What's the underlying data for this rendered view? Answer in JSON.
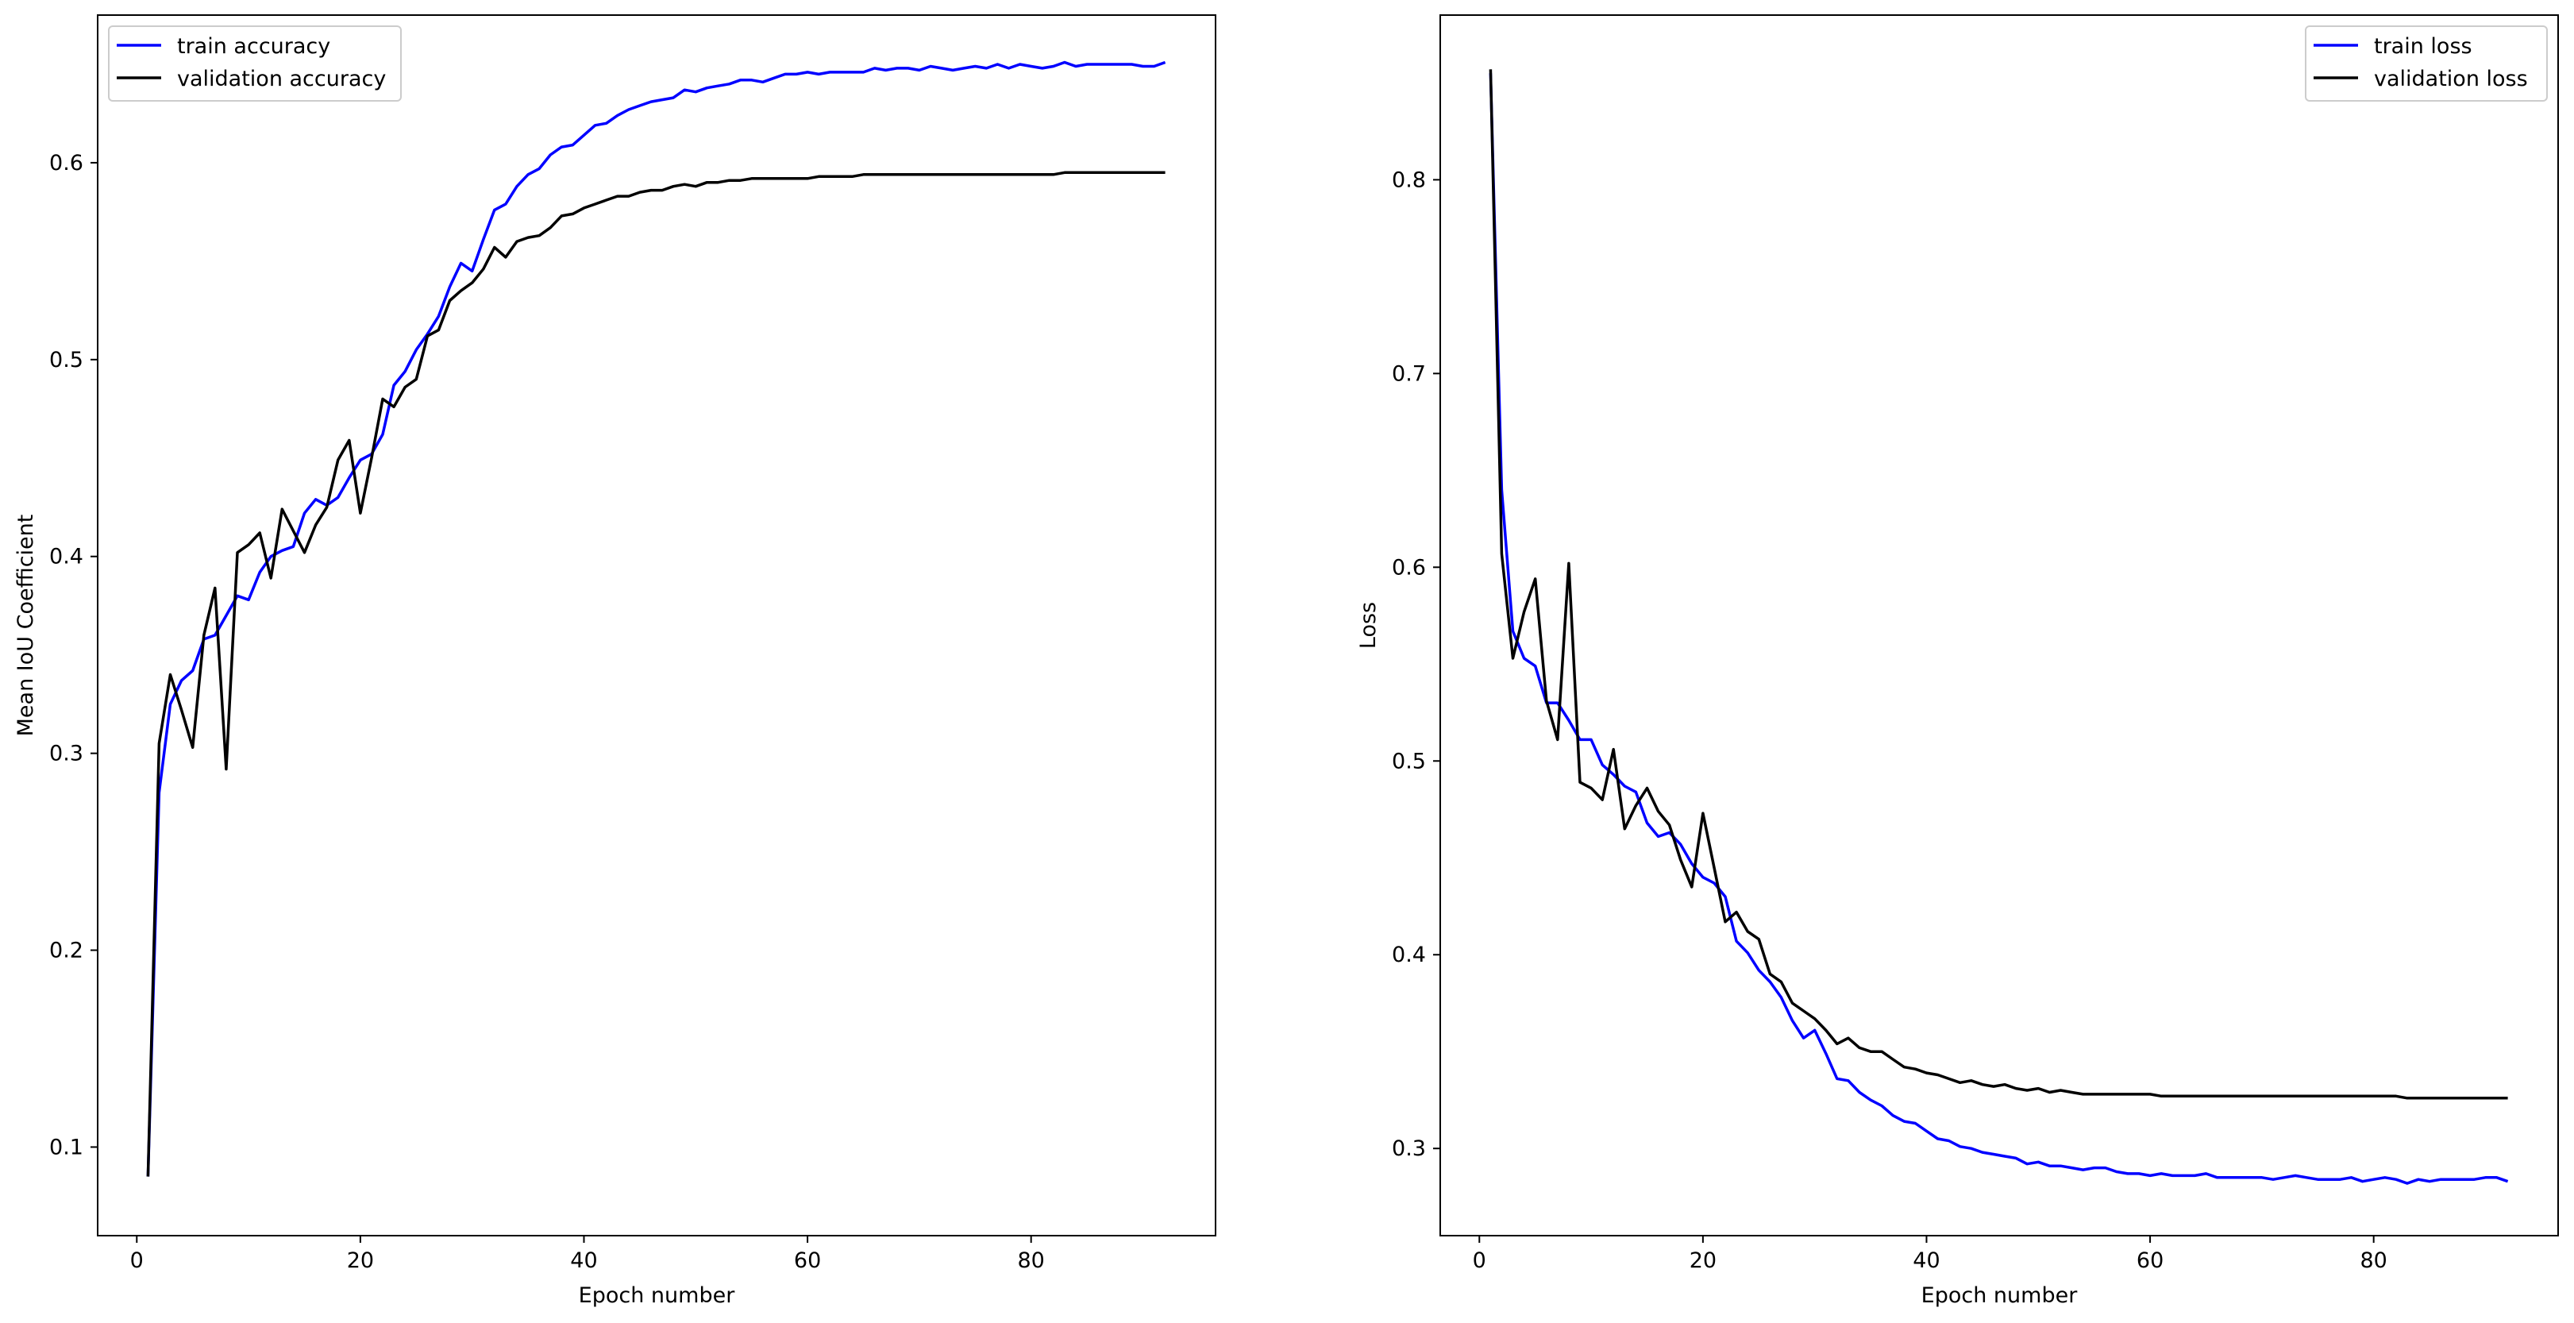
{
  "chart_data": [
    {
      "type": "line",
      "title": "",
      "xlabel": "Epoch number",
      "ylabel": "Mean IoU Coefficient",
      "xlim": [
        -3.5,
        96.5
      ],
      "ylim": [
        0.055,
        0.675
      ],
      "xticks": [
        0,
        20,
        40,
        60,
        80
      ],
      "yticks": [
        0.1,
        0.2,
        0.3,
        0.4,
        0.5,
        0.6
      ],
      "grid": false,
      "legend_position": "upper-left",
      "series": [
        {
          "name": "train accuracy",
          "color": "#0000ff",
          "x": [
            1,
            2,
            3,
            4,
            5,
            6,
            7,
            8,
            9,
            10,
            11,
            12,
            13,
            14,
            15,
            16,
            17,
            18,
            19,
            20,
            21,
            22,
            23,
            24,
            25,
            26,
            27,
            28,
            29,
            30,
            31,
            32,
            33,
            34,
            35,
            36,
            37,
            38,
            39,
            40,
            41,
            42,
            43,
            44,
            45,
            46,
            47,
            48,
            49,
            50,
            51,
            52,
            53,
            54,
            55,
            56,
            57,
            58,
            59,
            60,
            61,
            62,
            63,
            64,
            65,
            66,
            67,
            68,
            69,
            70,
            71,
            72,
            73,
            74,
            75,
            76,
            77,
            78,
            79,
            80,
            81,
            82,
            83,
            84,
            85,
            86,
            87,
            88,
            89,
            90,
            91,
            92
          ],
          "y": [
            0.085,
            0.28,
            0.325,
            0.337,
            0.342,
            0.358,
            0.36,
            0.37,
            0.38,
            0.378,
            0.392,
            0.4,
            0.403,
            0.405,
            0.422,
            0.429,
            0.426,
            0.43,
            0.44,
            0.449,
            0.452,
            0.462,
            0.487,
            0.494,
            0.505,
            0.513,
            0.522,
            0.537,
            0.549,
            0.545,
            0.561,
            0.576,
            0.579,
            0.588,
            0.594,
            0.597,
            0.604,
            0.608,
            0.609,
            0.614,
            0.619,
            0.62,
            0.624,
            0.627,
            0.629,
            0.631,
            0.632,
            0.633,
            0.637,
            0.636,
            0.638,
            0.639,
            0.64,
            0.642,
            0.642,
            0.641,
            0.643,
            0.645,
            0.645,
            0.646,
            0.645,
            0.646,
            0.646,
            0.646,
            0.646,
            0.648,
            0.647,
            0.648,
            0.648,
            0.647,
            0.649,
            0.648,
            0.647,
            0.648,
            0.649,
            0.648,
            0.65,
            0.648,
            0.65,
            0.649,
            0.648,
            0.649,
            0.651,
            0.649,
            0.65,
            0.65,
            0.65,
            0.65,
            0.65,
            0.649,
            0.649,
            0.651
          ]
        },
        {
          "name": "validation accuracy",
          "color": "#000000",
          "x": [
            1,
            2,
            3,
            4,
            5,
            6,
            7,
            8,
            9,
            10,
            11,
            12,
            13,
            14,
            15,
            16,
            17,
            18,
            19,
            20,
            21,
            22,
            23,
            24,
            25,
            26,
            27,
            28,
            29,
            30,
            31,
            32,
            33,
            34,
            35,
            36,
            37,
            38,
            39,
            40,
            41,
            42,
            43,
            44,
            45,
            46,
            47,
            48,
            49,
            50,
            51,
            52,
            53,
            54,
            55,
            56,
            57,
            58,
            59,
            60,
            61,
            62,
            63,
            64,
            65,
            66,
            67,
            68,
            69,
            70,
            71,
            72,
            73,
            74,
            75,
            76,
            77,
            78,
            79,
            80,
            81,
            82,
            83,
            84,
            85,
            86,
            87,
            88,
            89,
            90,
            91,
            92
          ],
          "y": [
            0.085,
            0.305,
            0.34,
            0.322,
            0.303,
            0.36,
            0.384,
            0.292,
            0.402,
            0.406,
            0.412,
            0.389,
            0.424,
            0.413,
            0.402,
            0.416,
            0.425,
            0.449,
            0.459,
            0.422,
            0.45,
            0.48,
            0.476,
            0.486,
            0.49,
            0.512,
            0.515,
            0.53,
            0.535,
            0.539,
            0.546,
            0.557,
            0.552,
            0.56,
            0.562,
            0.563,
            0.567,
            0.573,
            0.574,
            0.577,
            0.579,
            0.581,
            0.583,
            0.583,
            0.585,
            0.586,
            0.586,
            0.588,
            0.589,
            0.588,
            0.59,
            0.59,
            0.591,
            0.591,
            0.592,
            0.592,
            0.592,
            0.592,
            0.592,
            0.592,
            0.593,
            0.593,
            0.593,
            0.593,
            0.594,
            0.594,
            0.594,
            0.594,
            0.594,
            0.594,
            0.594,
            0.594,
            0.594,
            0.594,
            0.594,
            0.594,
            0.594,
            0.594,
            0.594,
            0.594,
            0.594,
            0.594,
            0.595,
            0.595,
            0.595,
            0.595,
            0.595,
            0.595,
            0.595,
            0.595,
            0.595,
            0.595
          ]
        }
      ]
    },
    {
      "type": "line",
      "title": "",
      "xlabel": "Epoch number",
      "ylabel": "Loss",
      "xlim": [
        -3.5,
        96.5
      ],
      "ylim": [
        0.255,
        0.885
      ],
      "xticks": [
        0,
        20,
        40,
        60,
        80
      ],
      "yticks": [
        0.3,
        0.4,
        0.5,
        0.6,
        0.7,
        0.8
      ],
      "grid": false,
      "legend_position": "upper-right",
      "series": [
        {
          "name": "train loss",
          "color": "#0000ff",
          "x": [
            1,
            2,
            3,
            4,
            5,
            6,
            7,
            8,
            9,
            10,
            11,
            12,
            13,
            14,
            15,
            16,
            17,
            18,
            19,
            20,
            21,
            22,
            23,
            24,
            25,
            26,
            27,
            28,
            29,
            30,
            31,
            32,
            33,
            34,
            35,
            36,
            37,
            38,
            39,
            40,
            41,
            42,
            43,
            44,
            45,
            46,
            47,
            48,
            49,
            50,
            51,
            52,
            53,
            54,
            55,
            56,
            57,
            58,
            59,
            60,
            61,
            62,
            63,
            64,
            65,
            66,
            67,
            68,
            69,
            70,
            71,
            72,
            73,
            74,
            75,
            76,
            77,
            78,
            79,
            80,
            81,
            82,
            83,
            84,
            85,
            86,
            87,
            88,
            89,
            90,
            91,
            92
          ],
          "y": [
            0.855,
            0.64,
            0.567,
            0.553,
            0.549,
            0.53,
            0.53,
            0.521,
            0.511,
            0.511,
            0.498,
            0.493,
            0.487,
            0.484,
            0.468,
            0.461,
            0.463,
            0.457,
            0.447,
            0.44,
            0.437,
            0.43,
            0.407,
            0.401,
            0.392,
            0.386,
            0.378,
            0.366,
            0.357,
            0.361,
            0.349,
            0.336,
            0.335,
            0.329,
            0.325,
            0.322,
            0.317,
            0.314,
            0.313,
            0.309,
            0.305,
            0.304,
            0.301,
            0.3,
            0.298,
            0.297,
            0.296,
            0.295,
            0.292,
            0.293,
            0.291,
            0.291,
            0.29,
            0.289,
            0.29,
            0.29,
            0.288,
            0.287,
            0.287,
            0.286,
            0.287,
            0.286,
            0.286,
            0.286,
            0.287,
            0.285,
            0.285,
            0.285,
            0.285,
            0.285,
            0.284,
            0.285,
            0.286,
            0.285,
            0.284,
            0.284,
            0.284,
            0.285,
            0.283,
            0.284,
            0.285,
            0.284,
            0.282,
            0.284,
            0.283,
            0.284,
            0.284,
            0.284,
            0.284,
            0.285,
            0.285,
            0.283
          ]
        },
        {
          "name": "validation loss",
          "color": "#000000",
          "x": [
            1,
            2,
            3,
            4,
            5,
            6,
            7,
            8,
            9,
            10,
            11,
            12,
            13,
            14,
            15,
            16,
            17,
            18,
            19,
            20,
            21,
            22,
            23,
            24,
            25,
            26,
            27,
            28,
            29,
            30,
            31,
            32,
            33,
            34,
            35,
            36,
            37,
            38,
            39,
            40,
            41,
            42,
            43,
            44,
            45,
            46,
            47,
            48,
            49,
            50,
            51,
            52,
            53,
            54,
            55,
            56,
            57,
            58,
            59,
            60,
            61,
            62,
            63,
            64,
            65,
            66,
            67,
            68,
            69,
            70,
            71,
            72,
            73,
            74,
            75,
            76,
            77,
            78,
            79,
            80,
            81,
            82,
            83,
            84,
            85,
            86,
            87,
            88,
            89,
            90,
            91,
            92
          ],
          "y": [
            0.857,
            0.607,
            0.553,
            0.577,
            0.594,
            0.531,
            0.511,
            0.602,
            0.489,
            0.486,
            0.48,
            0.506,
            0.465,
            0.477,
            0.486,
            0.474,
            0.467,
            0.449,
            0.435,
            0.473,
            0.445,
            0.417,
            0.422,
            0.412,
            0.408,
            0.39,
            0.386,
            0.375,
            0.371,
            0.367,
            0.361,
            0.354,
            0.357,
            0.352,
            0.35,
            0.35,
            0.346,
            0.342,
            0.341,
            0.339,
            0.338,
            0.336,
            0.334,
            0.335,
            0.333,
            0.332,
            0.333,
            0.331,
            0.33,
            0.331,
            0.329,
            0.33,
            0.329,
            0.328,
            0.328,
            0.328,
            0.328,
            0.328,
            0.328,
            0.328,
            0.327,
            0.327,
            0.327,
            0.327,
            0.327,
            0.327,
            0.327,
            0.327,
            0.327,
            0.327,
            0.327,
            0.327,
            0.327,
            0.327,
            0.327,
            0.327,
            0.327,
            0.327,
            0.327,
            0.327,
            0.327,
            0.327,
            0.326,
            0.326,
            0.326,
            0.326,
            0.326,
            0.326,
            0.326,
            0.326,
            0.326,
            0.326
          ]
        }
      ]
    }
  ]
}
